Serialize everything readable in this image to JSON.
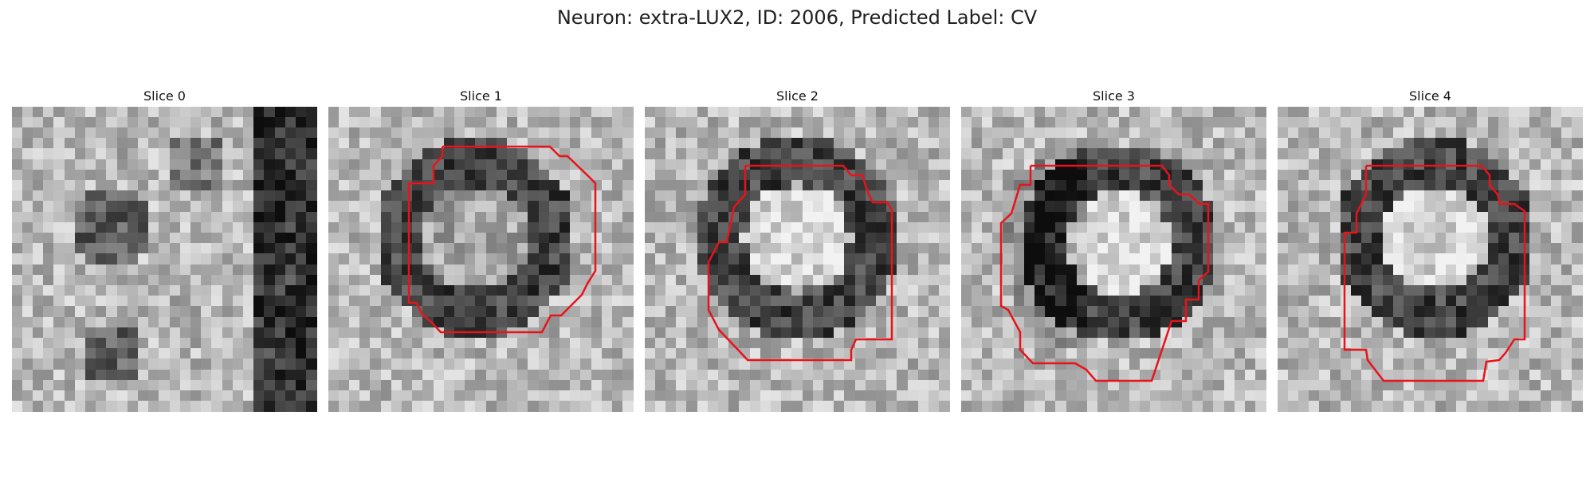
{
  "figure": {
    "title": "Neuron: extra-LUX2, ID: 2006, Predicted Label: CV"
  },
  "panels": [
    {
      "title": "Slice 0",
      "has_contour": false
    },
    {
      "title": "Slice 1",
      "has_contour": true
    },
    {
      "title": "Slice 2",
      "has_contour": true
    },
    {
      "title": "Slice 3",
      "has_contour": true
    },
    {
      "title": "Slice 4",
      "has_contour": true
    }
  ],
  "colors": {
    "contour": "#e8131b",
    "background": "#ffffff"
  }
}
